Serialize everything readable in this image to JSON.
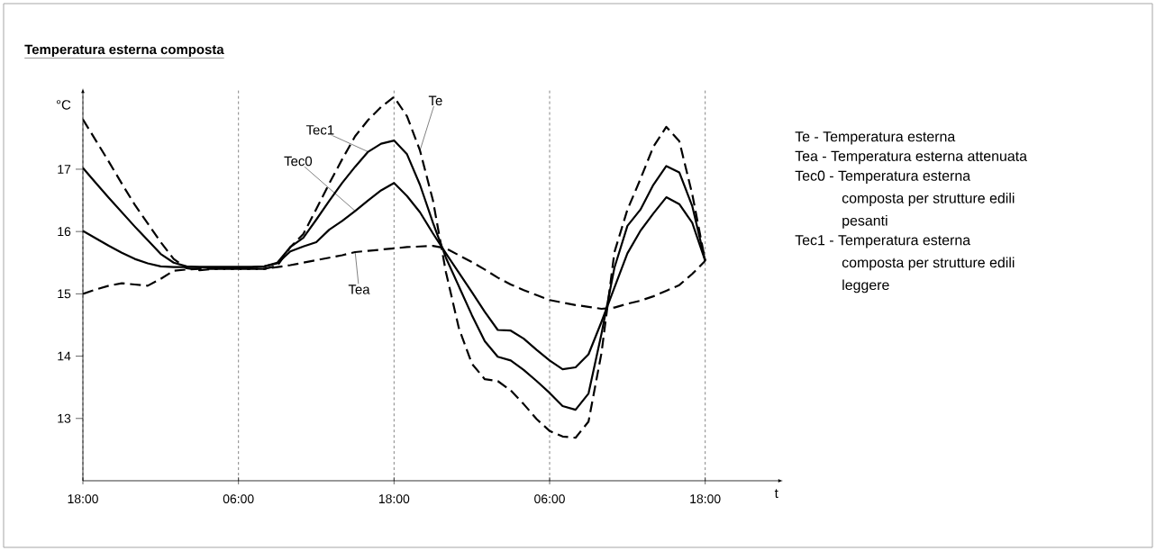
{
  "chart_data": {
    "type": "line",
    "title": "Temperatura esterna composta",
    "xlabel": "t",
    "ylabel": "°C",
    "categories": [
      "18:00",
      null,
      null,
      null,
      null,
      null,
      null,
      null,
      null,
      null,
      null,
      null,
      "06:00",
      null,
      null,
      null,
      null,
      null,
      null,
      null,
      null,
      null,
      null,
      null,
      "18:00",
      null,
      null,
      null,
      null,
      null,
      null,
      null,
      null,
      null,
      null,
      null,
      "06:00",
      null,
      null,
      null,
      null,
      null,
      null,
      null,
      null,
      null,
      null,
      null,
      "18:00"
    ],
    "ylim": [
      12,
      18.3
    ],
    "yticks": [
      13,
      14,
      15,
      16,
      17
    ],
    "grid": "x",
    "marker": "none",
    "series": [
      {
        "name": "Te",
        "color": "#000000",
        "line_style": "dashed",
        "values": [
          17.8,
          17.46,
          17.12,
          16.77,
          16.43,
          16.13,
          15.83,
          15.56,
          15.41,
          15.38,
          15.4,
          15.4,
          15.4,
          15.4,
          15.4,
          15.45,
          15.75,
          15.96,
          16.36,
          16.77,
          17.16,
          17.53,
          17.79,
          18.0,
          18.16,
          17.85,
          17.3,
          16.5,
          15.35,
          14.45,
          13.88,
          13.63,
          13.6,
          13.45,
          13.23,
          12.99,
          12.8,
          12.71,
          12.69,
          12.95,
          14.05,
          15.67,
          16.35,
          16.84,
          17.36,
          17.68,
          17.45,
          16.6,
          15.53
        ]
      },
      {
        "name": "Tea",
        "color": "#000000",
        "line_style": "dashed",
        "values": [
          15.0,
          15.07,
          15.13,
          15.17,
          15.15,
          15.13,
          15.24,
          15.37,
          15.39,
          15.4,
          15.4,
          15.4,
          15.4,
          15.4,
          15.4,
          15.43,
          15.46,
          15.5,
          15.54,
          15.58,
          15.62,
          15.67,
          15.69,
          15.71,
          15.73,
          15.75,
          15.76,
          15.77,
          15.73,
          15.62,
          15.51,
          15.39,
          15.26,
          15.15,
          15.06,
          14.98,
          14.9,
          14.86,
          14.82,
          14.79,
          14.76,
          14.78,
          14.84,
          14.89,
          14.96,
          15.05,
          15.14,
          15.32,
          15.53
        ]
      },
      {
        "name": "Tec0",
        "color": "#000000",
        "line_style": "solid",
        "values": [
          16.01,
          15.89,
          15.77,
          15.66,
          15.56,
          15.49,
          15.44,
          15.43,
          15.43,
          15.43,
          15.43,
          15.43,
          15.43,
          15.43,
          15.44,
          15.49,
          15.68,
          15.76,
          15.83,
          16.03,
          16.17,
          16.33,
          16.5,
          16.66,
          16.78,
          16.57,
          16.31,
          15.97,
          15.65,
          15.34,
          15.03,
          14.71,
          14.42,
          14.41,
          14.28,
          14.1,
          13.93,
          13.79,
          13.82,
          14.03,
          14.55,
          15.1,
          15.65,
          16.01,
          16.29,
          16.55,
          16.44,
          16.14,
          15.53
        ]
      },
      {
        "name": "Tec1",
        "color": "#000000",
        "line_style": "solid",
        "values": [
          17.02,
          16.78,
          16.54,
          16.31,
          16.08,
          15.86,
          15.64,
          15.5,
          15.44,
          15.43,
          15.43,
          15.43,
          15.43,
          15.43,
          15.44,
          15.5,
          15.75,
          15.9,
          16.19,
          16.49,
          16.78,
          17.04,
          17.28,
          17.41,
          17.46,
          17.24,
          16.75,
          16.14,
          15.58,
          15.12,
          14.66,
          14.24,
          13.99,
          13.93,
          13.78,
          13.6,
          13.41,
          13.2,
          13.14,
          13.4,
          14.36,
          15.42,
          16.09,
          16.35,
          16.75,
          17.05,
          16.95,
          16.41,
          15.53
        ]
      }
    ],
    "annotations": [
      "Te - Temperatura esterna",
      "Tea - Temperatura esterna attenuata",
      "Tec0 - Temperatura esterna composta per strutture edili pesanti",
      "Tec1 - Temperatura esterna composta per strutture edili leggere"
    ]
  }
}
